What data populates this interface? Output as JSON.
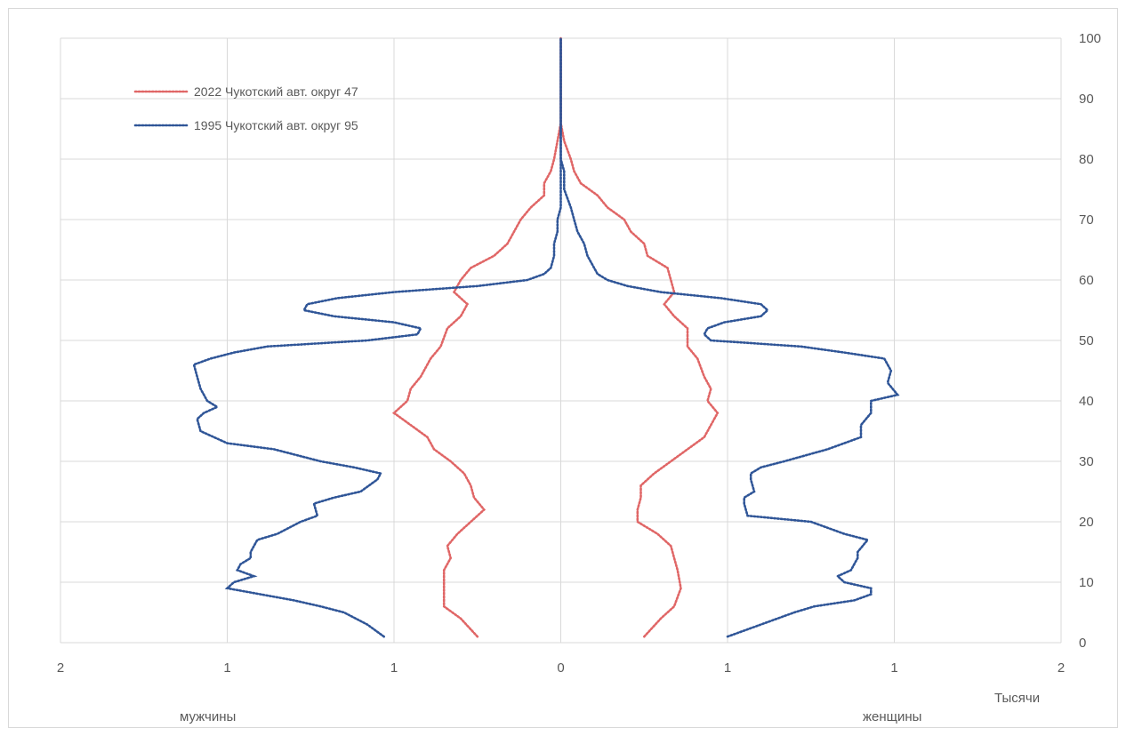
{
  "chart_data": {
    "type": "line",
    "title": "",
    "xlabel": "",
    "ylabel": "",
    "units_label": "Тысячи",
    "left_side_label": "мужчины",
    "right_side_label": "женщины",
    "x_tick_labels": [
      "2",
      "1",
      "1",
      "0",
      "1",
      "1",
      "2"
    ],
    "x_tick_values": [
      -1.5,
      -1.0,
      -0.5,
      0,
      0.5,
      1.0,
      1.5
    ],
    "xlim": [
      -1.5,
      1.5
    ],
    "y_ticks": [
      0,
      10,
      20,
      30,
      40,
      50,
      60,
      70,
      80,
      90,
      100
    ],
    "ylim": [
      0,
      100
    ],
    "grid": true,
    "legend_position": "top-left",
    "colors": {
      "left_tick_labels": "#ff0000",
      "grid": "#d9d9d9",
      "text": "#595959"
    },
    "series": [
      {
        "name": "2022 Чукотский авт.  округ  47",
        "color": "#e06666",
        "points": [
          [
            -0.25,
            1
          ],
          [
            -0.3,
            4
          ],
          [
            -0.35,
            6
          ],
          [
            -0.35,
            9
          ],
          [
            -0.35,
            12
          ],
          [
            -0.33,
            14
          ],
          [
            -0.34,
            16
          ],
          [
            -0.31,
            18
          ],
          [
            -0.27,
            20
          ],
          [
            -0.23,
            22
          ],
          [
            -0.26,
            24
          ],
          [
            -0.27,
            26
          ],
          [
            -0.29,
            28
          ],
          [
            -0.33,
            30
          ],
          [
            -0.38,
            32
          ],
          [
            -0.4,
            34
          ],
          [
            -0.45,
            36
          ],
          [
            -0.5,
            38
          ],
          [
            -0.46,
            40
          ],
          [
            -0.45,
            42
          ],
          [
            -0.42,
            44
          ],
          [
            -0.39,
            47
          ],
          [
            -0.36,
            49
          ],
          [
            -0.34,
            52
          ],
          [
            -0.3,
            54
          ],
          [
            -0.28,
            56
          ],
          [
            -0.32,
            58
          ],
          [
            -0.3,
            60
          ],
          [
            -0.27,
            62
          ],
          [
            -0.2,
            64
          ],
          [
            -0.16,
            66
          ],
          [
            -0.14,
            68
          ],
          [
            -0.12,
            70
          ],
          [
            -0.09,
            72
          ],
          [
            -0.05,
            74
          ],
          [
            -0.05,
            76
          ],
          [
            -0.03,
            78
          ],
          [
            -0.02,
            80
          ],
          [
            -0.01,
            83
          ],
          [
            0,
            86
          ],
          [
            0,
            90
          ],
          [
            0,
            95
          ],
          [
            0,
            100
          ]
        ],
        "points_right": [
          [
            0.25,
            1
          ],
          [
            0.3,
            4
          ],
          [
            0.34,
            6
          ],
          [
            0.36,
            9
          ],
          [
            0.35,
            12
          ],
          [
            0.34,
            14
          ],
          [
            0.33,
            16
          ],
          [
            0.29,
            18
          ],
          [
            0.23,
            20
          ],
          [
            0.23,
            22
          ],
          [
            0.24,
            24
          ],
          [
            0.24,
            26
          ],
          [
            0.28,
            28
          ],
          [
            0.33,
            30
          ],
          [
            0.38,
            32
          ],
          [
            0.43,
            34
          ],
          [
            0.45,
            36
          ],
          [
            0.47,
            38
          ],
          [
            0.44,
            40
          ],
          [
            0.45,
            42
          ],
          [
            0.43,
            44
          ],
          [
            0.41,
            47
          ],
          [
            0.38,
            49
          ],
          [
            0.38,
            52
          ],
          [
            0.34,
            54
          ],
          [
            0.31,
            56
          ],
          [
            0.34,
            58
          ],
          [
            0.33,
            60
          ],
          [
            0.32,
            62
          ],
          [
            0.26,
            64
          ],
          [
            0.25,
            66
          ],
          [
            0.21,
            68
          ],
          [
            0.19,
            70
          ],
          [
            0.14,
            72
          ],
          [
            0.11,
            74
          ],
          [
            0.06,
            76
          ],
          [
            0.04,
            78
          ],
          [
            0.03,
            80
          ],
          [
            0.01,
            83
          ],
          [
            0,
            86
          ],
          [
            0,
            90
          ],
          [
            0,
            95
          ],
          [
            0,
            100
          ]
        ]
      },
      {
        "name": "1995 Чукотский авт.  округ  95",
        "color": "#2f5597",
        "points": [
          [
            -0.53,
            1
          ],
          [
            -0.58,
            3
          ],
          [
            -0.65,
            5
          ],
          [
            -0.72,
            6
          ],
          [
            -0.8,
            7
          ],
          [
            -0.9,
            8
          ],
          [
            -1.0,
            9
          ],
          [
            -0.98,
            10
          ],
          [
            -0.92,
            11
          ],
          [
            -0.97,
            12
          ],
          [
            -0.96,
            13
          ],
          [
            -0.93,
            14
          ],
          [
            -0.93,
            15
          ],
          [
            -0.91,
            17
          ],
          [
            -0.85,
            18
          ],
          [
            -0.78,
            20
          ],
          [
            -0.73,
            21
          ],
          [
            -0.74,
            23
          ],
          [
            -0.68,
            24
          ],
          [
            -0.6,
            25
          ],
          [
            -0.55,
            27
          ],
          [
            -0.54,
            28
          ],
          [
            -0.62,
            29
          ],
          [
            -0.72,
            30
          ],
          [
            -0.86,
            32
          ],
          [
            -1.0,
            33
          ],
          [
            -1.08,
            35
          ],
          [
            -1.09,
            37
          ],
          [
            -1.07,
            38
          ],
          [
            -1.03,
            39
          ],
          [
            -1.06,
            40
          ],
          [
            -1.08,
            42
          ],
          [
            -1.09,
            44
          ],
          [
            -1.1,
            46
          ],
          [
            -1.05,
            47
          ],
          [
            -0.98,
            48
          ],
          [
            -0.88,
            49
          ],
          [
            -0.58,
            50
          ],
          [
            -0.43,
            51
          ],
          [
            -0.42,
            52
          ],
          [
            -0.5,
            53
          ],
          [
            -0.68,
            54
          ],
          [
            -0.77,
            55
          ],
          [
            -0.76,
            56
          ],
          [
            -0.67,
            57
          ],
          [
            -0.5,
            58
          ],
          [
            -0.25,
            59
          ],
          [
            -0.1,
            60
          ],
          [
            -0.05,
            61
          ],
          [
            -0.03,
            62
          ],
          [
            -0.02,
            64
          ],
          [
            -0.02,
            66
          ],
          [
            -0.01,
            68
          ],
          [
            -0.01,
            70
          ],
          [
            0,
            72
          ],
          [
            0,
            75
          ],
          [
            0,
            80
          ],
          [
            0,
            85
          ],
          [
            0,
            90
          ],
          [
            0,
            95
          ],
          [
            0,
            100
          ]
        ],
        "points_right": [
          [
            0.5,
            1
          ],
          [
            0.6,
            3
          ],
          [
            0.7,
            5
          ],
          [
            0.76,
            6
          ],
          [
            0.88,
            7
          ],
          [
            0.93,
            8
          ],
          [
            0.93,
            9
          ],
          [
            0.85,
            10
          ],
          [
            0.83,
            11
          ],
          [
            0.87,
            12
          ],
          [
            0.88,
            13
          ],
          [
            0.89,
            14
          ],
          [
            0.89,
            15
          ],
          [
            0.92,
            17
          ],
          [
            0.85,
            18
          ],
          [
            0.75,
            20
          ],
          [
            0.56,
            21
          ],
          [
            0.55,
            23
          ],
          [
            0.55,
            24
          ],
          [
            0.58,
            25
          ],
          [
            0.57,
            27
          ],
          [
            0.57,
            28
          ],
          [
            0.6,
            29
          ],
          [
            0.67,
            30
          ],
          [
            0.8,
            32
          ],
          [
            0.9,
            34
          ],
          [
            0.9,
            36
          ],
          [
            0.93,
            38
          ],
          [
            0.93,
            40
          ],
          [
            1.01,
            41
          ],
          [
            0.98,
            43
          ],
          [
            0.99,
            45
          ],
          [
            0.97,
            47
          ],
          [
            0.85,
            48
          ],
          [
            0.72,
            49
          ],
          [
            0.45,
            50
          ],
          [
            0.43,
            51
          ],
          [
            0.44,
            52
          ],
          [
            0.49,
            53
          ],
          [
            0.6,
            54
          ],
          [
            0.62,
            55
          ],
          [
            0.6,
            56
          ],
          [
            0.48,
            57
          ],
          [
            0.3,
            58
          ],
          [
            0.2,
            59
          ],
          [
            0.14,
            60
          ],
          [
            0.11,
            61
          ],
          [
            0.1,
            62
          ],
          [
            0.08,
            64
          ],
          [
            0.07,
            66
          ],
          [
            0.05,
            68
          ],
          [
            0.04,
            70
          ],
          [
            0.03,
            72
          ],
          [
            0.01,
            75
          ],
          [
            0.01,
            78
          ],
          [
            0,
            80
          ],
          [
            0,
            85
          ],
          [
            0,
            90
          ],
          [
            0,
            95
          ],
          [
            0,
            100
          ]
        ]
      }
    ]
  }
}
